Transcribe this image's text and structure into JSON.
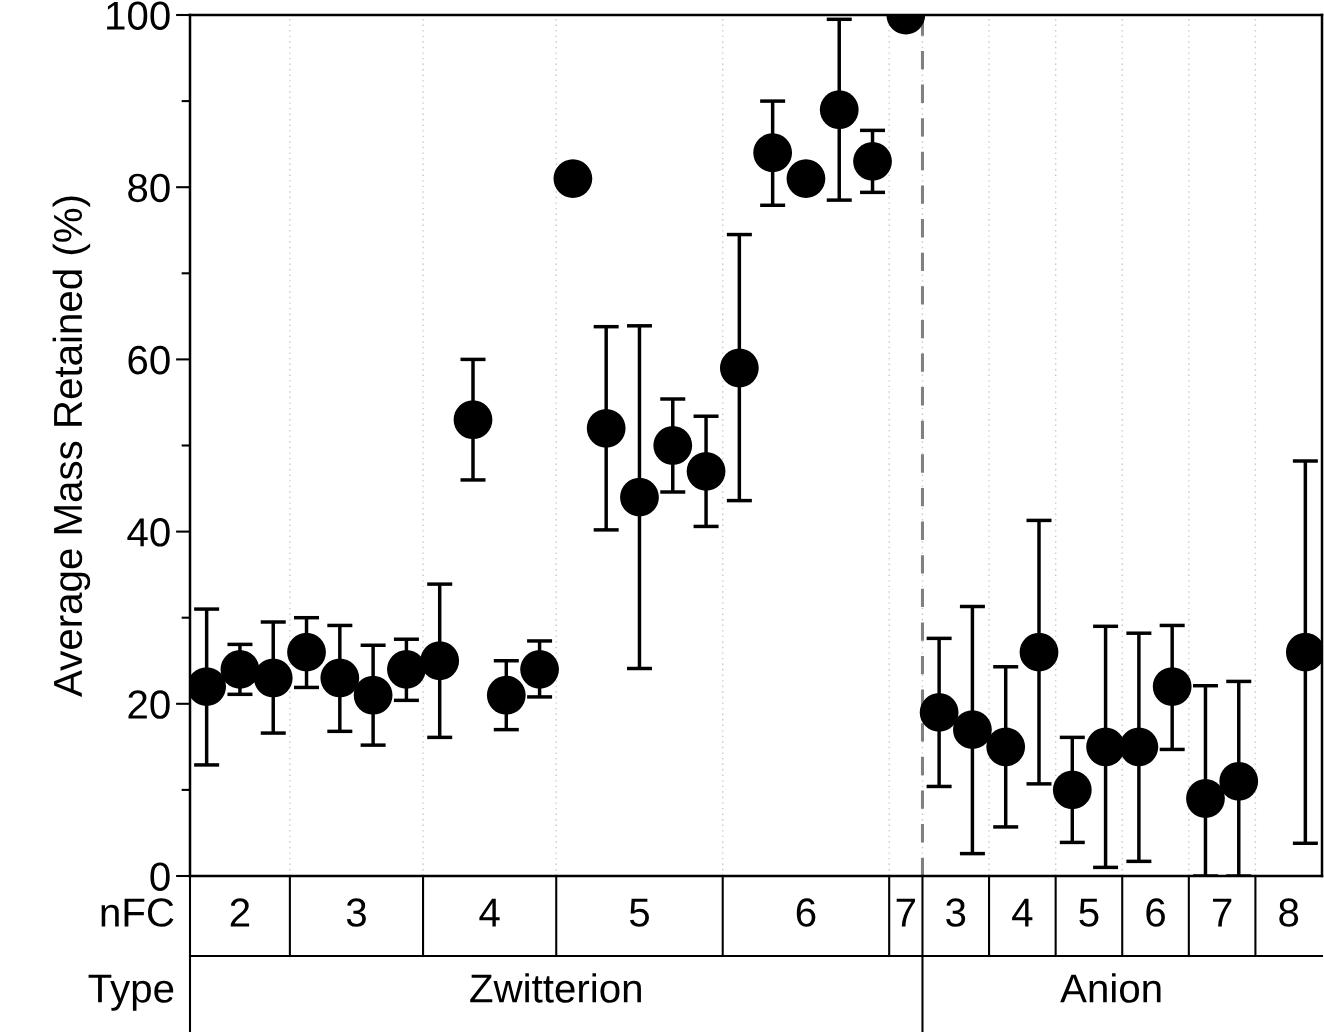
{
  "chart_data": {
    "type": "scatter",
    "ylabel": "Average Mass Retained (%)",
    "categories": [
      null,
      null,
      null,
      null,
      null,
      null,
      null,
      null,
      null,
      null,
      null,
      null,
      null,
      null,
      null,
      null,
      null,
      null,
      null,
      null,
      null,
      null,
      null,
      null,
      null,
      null,
      null,
      null,
      null,
      null,
      null,
      null,
      null,
      null
    ],
    "series": [
      {
        "color": "#000000",
        "values": [
          22,
          24,
          23,
          26,
          23,
          21,
          24,
          25,
          53,
          21,
          24,
          81,
          52,
          44,
          50,
          47,
          59,
          84,
          81,
          89,
          83,
          100,
          19,
          17,
          15,
          26,
          10,
          15,
          15,
          22,
          9,
          11,
          null,
          26
        ],
        "errors": [
          [
            12.9,
            31.0
          ],
          [
            21.1,
            26.9
          ],
          [
            16.6,
            29.5
          ],
          [
            21.9,
            30.0
          ],
          [
            16.8,
            29.1
          ],
          [
            15.2,
            26.8
          ],
          [
            20.4,
            27.5
          ],
          [
            16.1,
            33.9
          ],
          [
            46.0,
            60.0
          ],
          [
            17.0,
            25.0
          ],
          [
            20.8,
            27.3
          ],
          null,
          [
            40.2,
            63.8
          ],
          [
            24.1,
            63.9
          ],
          [
            44.6,
            55.4
          ],
          [
            40.6,
            53.4
          ],
          [
            43.6,
            74.5
          ],
          [
            77.9,
            90.0
          ],
          null,
          [
            78.5,
            99.5
          ],
          [
            79.4,
            86.6
          ],
          null,
          [
            10.4,
            27.6
          ],
          [
            2.6,
            31.3
          ],
          [
            5.7,
            24.3
          ],
          [
            10.7,
            41.3
          ],
          [
            3.9,
            16.1
          ],
          [
            1.0,
            29.0
          ],
          [
            1.7,
            28.2
          ],
          [
            14.7,
            29.1
          ],
          [
            0,
            22.1
          ],
          [
            0,
            22.6
          ],
          null,
          [
            3.8,
            48.2
          ]
        ]
      }
    ],
    "marker": "circle",
    "ylim": [
      0,
      100
    ],
    "yticks": [
      0,
      20,
      40,
      60,
      80,
      100
    ],
    "grid": "x",
    "annotations": [
      "nFC",
      "Type",
      "2",
      "3",
      "4",
      "5",
      "6",
      "7",
      "3",
      "4",
      "5",
      "6",
      "7",
      "8",
      "Zwitterion",
      "Anion"
    ]
  }
}
